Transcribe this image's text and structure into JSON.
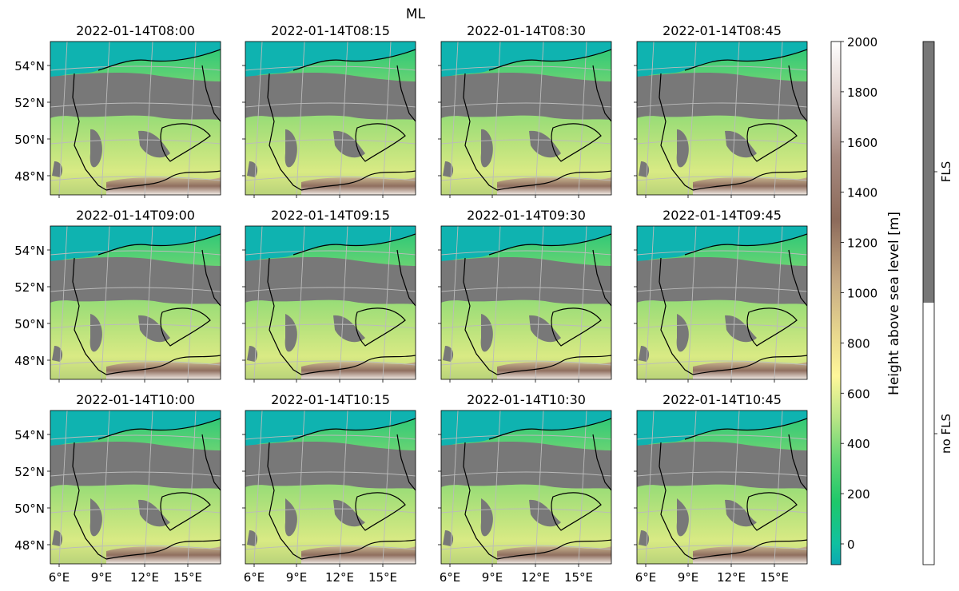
{
  "figure": {
    "suptitle": "ML",
    "panels": [
      {
        "title": "2022-01-14T08:00"
      },
      {
        "title": "2022-01-14T08:15"
      },
      {
        "title": "2022-01-14T08:30"
      },
      {
        "title": "2022-01-14T08:45"
      },
      {
        "title": "2022-01-14T09:00"
      },
      {
        "title": "2022-01-14T09:15"
      },
      {
        "title": "2022-01-14T09:30"
      },
      {
        "title": "2022-01-14T09:45"
      },
      {
        "title": "2022-01-14T10:00"
      },
      {
        "title": "2022-01-14T10:15"
      },
      {
        "title": "2022-01-14T10:30"
      },
      {
        "title": "2022-01-14T10:45"
      }
    ],
    "lat_ticks": [
      "54°N",
      "52°N",
      "50°N",
      "48°N"
    ],
    "lon_ticks": [
      "6°E",
      "9°E",
      "12°E",
      "15°E"
    ]
  },
  "elevation_colorbar": {
    "label": "Height above sea level [m]",
    "ticks": [
      "2000",
      "1800",
      "1600",
      "1400",
      "1200",
      "1000",
      "800",
      "600",
      "400",
      "200",
      "0"
    ],
    "colors": {
      "sea": "#0fb3b0",
      "low": "#1bc66e",
      "mid": "#b7e07a",
      "upper": "#fff79a",
      "high": "#b59b7a",
      "peak": "#7a5a4e",
      "top": "#ffffff"
    }
  },
  "fls_colorbar": {
    "labels": [
      "FLS",
      "no FLS"
    ],
    "colors": {
      "fls": "#777777",
      "no_fls": "#ffffff"
    }
  },
  "colors": {
    "fls_fill": "#787878",
    "borders": "#000000",
    "grid": "#bbbbbb"
  }
}
